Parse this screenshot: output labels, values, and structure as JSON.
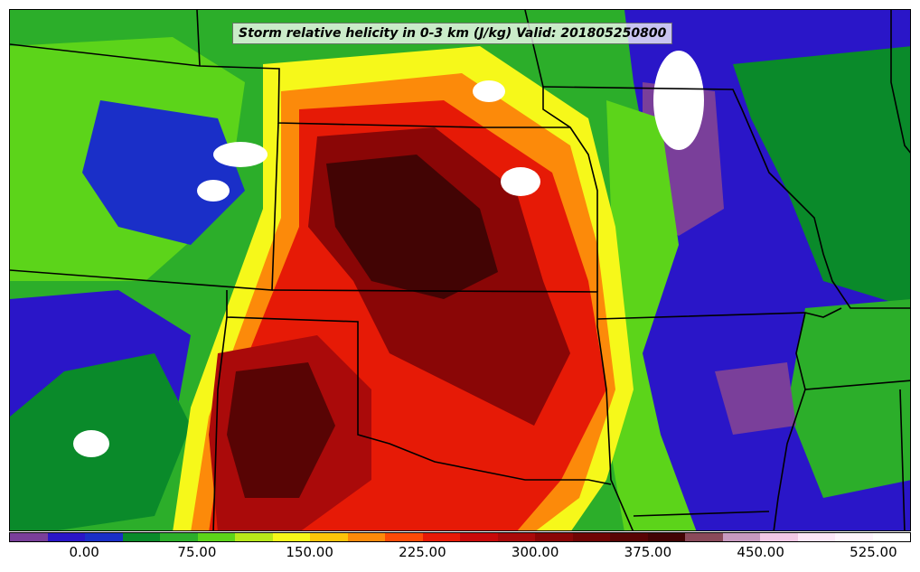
{
  "title": "Storm relative helicity in 0-3 km (J/kg) Valid: 201805250800",
  "colorbar": {
    "colors": [
      "#7a3f9a",
      "#2a16c8",
      "#1a2fc8",
      "#0a8a2a",
      "#2cae2a",
      "#5cd41a",
      "#b8e81a",
      "#f6f81a",
      "#fcc40a",
      "#fc8a0a",
      "#fc4a06",
      "#e61a06",
      "#c80a0a",
      "#aa0a0a",
      "#8a0606",
      "#700404",
      "#580404",
      "#420404",
      "#8a4a5a",
      "#c89ac0",
      "#f2c8e6",
      "#fde6f8",
      "#fff4fd",
      "#ffffff"
    ],
    "labels": [
      "0.00",
      "75.00",
      "150.00",
      "225.00",
      "300.00",
      "375.00",
      "450.00",
      "525.00"
    ]
  },
  "map": {
    "regions": [
      {
        "name": "background-mixed",
        "color": "#2cae2a"
      },
      {
        "name": "north-plains-green",
        "color": "#0a8a2a"
      },
      {
        "name": "colorado-blue",
        "color": "#1a2fc8"
      },
      {
        "name": "east-blue",
        "color": "#2a16c8"
      },
      {
        "name": "east-purple",
        "color": "#7a3f9a"
      },
      {
        "name": "yellow-band",
        "color": "#f6f81a"
      },
      {
        "name": "orange-band",
        "color": "#fc8a0a"
      },
      {
        "name": "red-core",
        "color": "#e61a06"
      },
      {
        "name": "darkred-core",
        "color": "#8a0606"
      },
      {
        "name": "maroon-core",
        "color": "#420404"
      },
      {
        "name": "white-patches",
        "color": "#ffffff"
      }
    ],
    "boundary_color": "#000000"
  }
}
